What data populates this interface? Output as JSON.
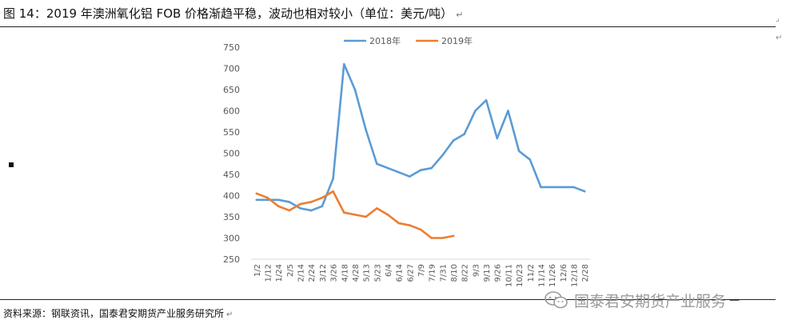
{
  "page": {
    "title": "图 14：2019 年澳洲氧化铝 FOB 价格渐趋平稳，波动也相对较小（单位：美元/吨）",
    "source": "资料来源：钢联资讯，国泰君安期货产业服务研究所",
    "brand": "国泰君安期货产业服务",
    "marks": {
      "return": "↵",
      "mid": "↵"
    }
  },
  "chart_data": {
    "type": "line",
    "title": "",
    "xlabel": "",
    "ylabel": "",
    "ylim": [
      250,
      750
    ],
    "yticks": [
      250,
      300,
      350,
      400,
      450,
      500,
      550,
      600,
      650,
      700,
      750
    ],
    "xticks": [
      "1/2",
      "1/12",
      "1/24",
      "2/5",
      "2/14",
      "2/24",
      "3/12",
      "3/26",
      "4/18",
      "4/28",
      "5/13",
      "5/23",
      "6/4",
      "6/14",
      "6/27",
      "7/9",
      "7/19",
      "7/31",
      "8/10",
      "8/22",
      "9/3",
      "9/13",
      "9/26",
      "10/11",
      "10/23",
      "11/2",
      "11/14",
      "11/26",
      "12/6",
      "12/18",
      "2/28"
    ],
    "legend": {
      "position": "top"
    },
    "grid": false,
    "colors": {
      "2018年": "#5b9bd5",
      "2019年": "#ed7d31"
    },
    "series": [
      {
        "name": "2018年",
        "x": [
          "1/2",
          "1/12",
          "1/24",
          "2/5",
          "2/14",
          "2/24",
          "3/12",
          "3/26",
          "4/18",
          "4/28",
          "5/13",
          "5/23",
          "6/4",
          "6/14",
          "6/27",
          "7/9",
          "7/19",
          "7/31",
          "8/10",
          "8/22",
          "9/3",
          "9/13",
          "9/26",
          "10/11",
          "10/23",
          "11/2",
          "11/14",
          "11/26",
          "12/6",
          "12/18",
          "2/28"
        ],
        "values": [
          390,
          390,
          390,
          385,
          370,
          365,
          375,
          440,
          710,
          650,
          555,
          475,
          465,
          455,
          445,
          460,
          465,
          495,
          530,
          545,
          600,
          625,
          535,
          600,
          505,
          485,
          420,
          420,
          420,
          420,
          410
        ]
      },
      {
        "name": "2019年",
        "x": [
          "1/2",
          "1/12",
          "1/24",
          "2/5",
          "2/14",
          "2/24",
          "3/12",
          "3/26",
          "4/18",
          "4/28",
          "5/13",
          "5/23",
          "6/4",
          "6/14",
          "6/27",
          "7/9",
          "7/19",
          "7/31",
          "8/10"
        ],
        "values": [
          405,
          395,
          375,
          365,
          380,
          385,
          395,
          410,
          360,
          355,
          350,
          370,
          355,
          335,
          330,
          320,
          300,
          300,
          305
        ]
      }
    ]
  }
}
